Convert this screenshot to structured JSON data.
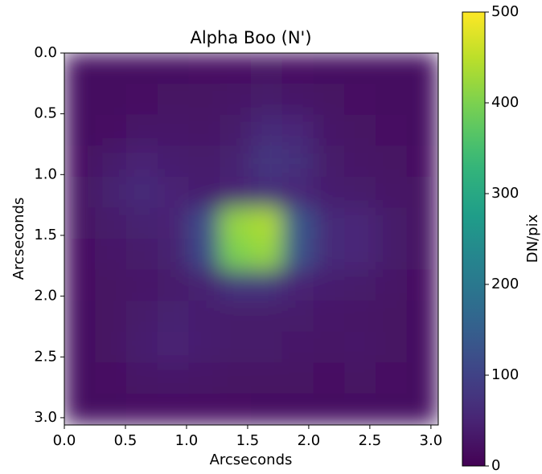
{
  "chart_data": {
    "type": "heatmap",
    "title": "Alpha Boo (N')",
    "xlabel": "Arcseconds",
    "ylabel": "Arcseconds",
    "colorbar_label": "DN/pix",
    "colormap": "viridis",
    "xlim": [
      0,
      3.06
    ],
    "ylim": [
      3.06,
      0
    ],
    "xticks": [
      {
        "value": 0,
        "label": "0.0"
      },
      0.5,
      {
        "value": 1,
        "label": "1.0"
      },
      1.5,
      {
        "value": 2,
        "label": "2.0"
      },
      2.5,
      {
        "value": 3,
        "label": "3.0"
      }
    ],
    "yticks": [
      {
        "value": 0,
        "label": "0.0"
      },
      0.5,
      {
        "value": 1,
        "label": "1.0"
      },
      1.5,
      {
        "value": 2,
        "label": "2.0"
      },
      2.5,
      {
        "value": 3,
        "label": "3.0"
      }
    ],
    "clim": [
      0,
      500
    ],
    "cticks": [
      0,
      100,
      200,
      300,
      400,
      500
    ],
    "z": [
      [
        20,
        20,
        20,
        20,
        22,
        22,
        24,
        22,
        20,
        20,
        20,
        20
      ],
      [
        20,
        20,
        22,
        25,
        25,
        28,
        35,
        30,
        25,
        22,
        20,
        20
      ],
      [
        20,
        22,
        30,
        30,
        28,
        35,
        60,
        55,
        30,
        25,
        22,
        20
      ],
      [
        22,
        35,
        50,
        40,
        35,
        45,
        80,
        70,
        35,
        28,
        25,
        22
      ],
      [
        25,
        45,
        60,
        50,
        40,
        50,
        60,
        55,
        40,
        35,
        28,
        25
      ],
      [
        25,
        35,
        45,
        50,
        120,
        420,
        440,
        140,
        60,
        55,
        35,
        25
      ],
      [
        22,
        30,
        35,
        45,
        110,
        400,
        420,
        130,
        60,
        55,
        35,
        25
      ],
      [
        22,
        25,
        30,
        35,
        45,
        75,
        75,
        50,
        40,
        35,
        28,
        22
      ],
      [
        20,
        25,
        35,
        45,
        40,
        35,
        35,
        35,
        30,
        28,
        25,
        20
      ],
      [
        20,
        25,
        40,
        50,
        40,
        35,
        35,
        30,
        28,
        30,
        25,
        20
      ],
      [
        20,
        22,
        28,
        30,
        28,
        25,
        25,
        25,
        22,
        25,
        22,
        20
      ],
      [
        20,
        20,
        22,
        22,
        22,
        22,
        20,
        20,
        20,
        20,
        20,
        20
      ]
    ]
  }
}
